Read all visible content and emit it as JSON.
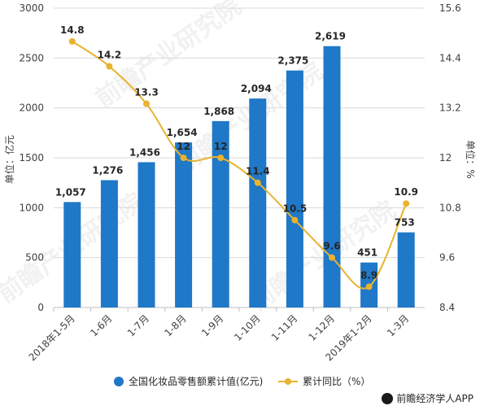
{
  "chart_data": {
    "type": "bar+line",
    "categories": [
      "2018年1-5月",
      "1-6月",
      "1-7月",
      "1-8月",
      "1-9月",
      "1-10月",
      "1-11月",
      "1-12月",
      "2019年1-2月",
      "1-3月"
    ],
    "series": [
      {
        "name": "全国化妆品零售额累计值(亿元)",
        "type": "bar",
        "axis": "left",
        "values": [
          1057,
          1276,
          1456,
          1654,
          1868,
          2094,
          2375,
          2619,
          451,
          753
        ],
        "labels": [
          "1,057",
          "1,276",
          "1,456",
          "1,654",
          "1,868",
          "2,094",
          "2,375",
          "2,619",
          "451",
          "753"
        ]
      },
      {
        "name": "累计同比（%）",
        "type": "line",
        "axis": "right",
        "values": [
          14.8,
          14.2,
          13.3,
          12,
          12,
          11.4,
          10.5,
          9.6,
          8.9,
          10.9
        ],
        "labels": [
          "14.8",
          "14.2",
          "13.3",
          "12",
          "12",
          "11.4",
          "10.5",
          "9.6",
          "8.9",
          "10.9"
        ]
      }
    ],
    "left_axis": {
      "label": "单位：亿元",
      "ylim": [
        0,
        3000
      ],
      "ticks": [
        "0",
        "500",
        "1000",
        "1500",
        "2000",
        "2500",
        "3000"
      ]
    },
    "right_axis": {
      "label": "单位：%",
      "ylim": [
        8.4,
        15.6
      ],
      "ticks": [
        "8.4",
        "9.6",
        "10.8",
        "12",
        "13.2",
        "14.4",
        "15.6"
      ]
    },
    "grid": true,
    "legend_position": "bottom"
  },
  "colors": {
    "bar": "#1f78c8",
    "line": "#e8b32e"
  },
  "watermark": "前瞻产业研究院",
  "source": "前瞻经济学人APP",
  "source_icon": "qianzhan-logo-icon"
}
